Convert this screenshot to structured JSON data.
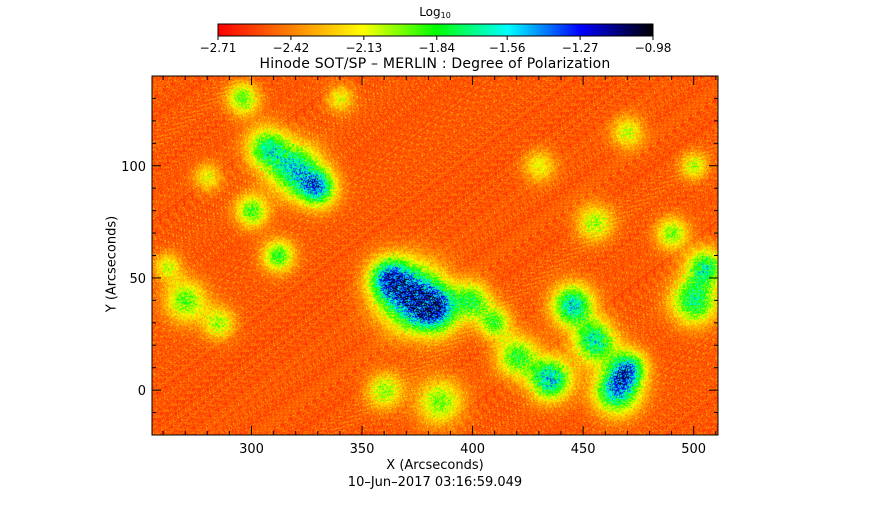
{
  "chart_data": {
    "type": "heatmap",
    "title": "Hinode SOT/SP – MERLIN : Degree of Polarization",
    "xlabel": "X (Arcseconds)",
    "ylabel": "Y (Arcseconds)",
    "xlim": [
      255,
      511
    ],
    "ylim": [
      -20,
      140
    ],
    "x_ticks": [
      "300",
      "350",
      "400",
      "450",
      "500"
    ],
    "x_tick_values": [
      300,
      350,
      400,
      450,
      500
    ],
    "y_ticks": [
      "0",
      "50",
      "100"
    ],
    "y_tick_values": [
      0,
      50,
      100
    ],
    "colorbar": {
      "title": "Log",
      "title_subscript": "10",
      "range": [
        -2.71,
        -0.98
      ],
      "tick_labels": [
        "−2.71",
        "−2.42",
        "−2.13",
        "−1.84",
        "−1.56",
        "−1.27",
        "−0.98"
      ],
      "tick_values": [
        -2.71,
        -2.42,
        -2.13,
        -1.84,
        -1.56,
        -1.27,
        -0.98
      ],
      "colors": [
        "#ff0000",
        "#ff8000",
        "#ffff00",
        "#00ff00",
        "#00ffff",
        "#0000ff",
        "#000000"
      ]
    },
    "timestamp": "10–Jun–2017 03:16:59.049"
  }
}
